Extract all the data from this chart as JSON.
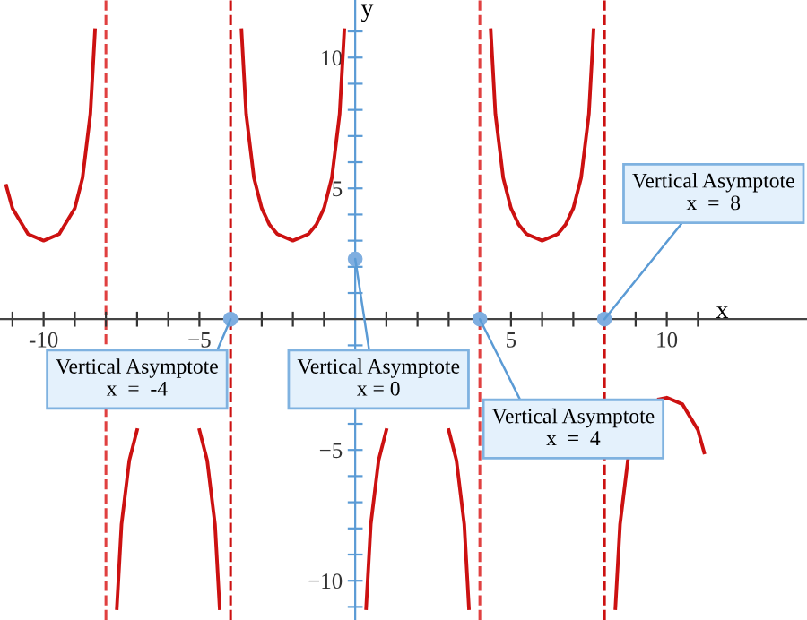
{
  "chart_data": {
    "type": "line",
    "xlabel": "x",
    "ylabel": "y",
    "xlim": [
      -11.4,
      14.5
    ],
    "ylim": [
      -11.5,
      12.2
    ],
    "xticks": [
      {
        "value": -11,
        "label": null
      },
      -10,
      {
        "value": -9,
        "label": null
      },
      {
        "value": -8,
        "label": null
      },
      {
        "value": -7,
        "label": null
      },
      {
        "value": -6,
        "label": null
      },
      {
        "value": -5,
        "label": "−5"
      },
      {
        "value": -4,
        "label": null
      },
      {
        "value": -3,
        "label": null
      },
      {
        "value": -2,
        "label": null
      },
      {
        "value": -1,
        "label": null
      },
      {
        "value": 1,
        "label": null
      },
      {
        "value": 2,
        "label": null
      },
      {
        "value": 3,
        "label": null
      },
      {
        "value": 4,
        "label": null
      },
      5,
      {
        "value": 6,
        "label": null
      },
      {
        "value": 7,
        "label": null
      },
      {
        "value": 8,
        "label": null
      },
      {
        "value": 9,
        "label": null
      },
      10,
      {
        "value": 11,
        "label": null
      }
    ],
    "yticks": [
      {
        "value": -11,
        "label": null
      },
      {
        "value": -10,
        "label": "−10"
      },
      {
        "value": -9,
        "label": null
      },
      {
        "value": -8,
        "label": null
      },
      {
        "value": -7,
        "label": null
      },
      {
        "value": -6,
        "label": null
      },
      {
        "value": -5,
        "label": "−5"
      },
      {
        "value": -4,
        "label": null
      },
      {
        "value": -3,
        "label": null
      },
      {
        "value": -2,
        "label": null
      },
      {
        "value": -1,
        "label": null
      },
      {
        "value": 1,
        "label": null
      },
      {
        "value": 2,
        "label": null
      },
      {
        "value": 3,
        "label": null
      },
      {
        "value": 4,
        "label": null
      },
      5,
      {
        "value": 6,
        "label": null
      },
      {
        "value": 7,
        "label": null
      },
      {
        "value": 8,
        "label": null
      },
      {
        "value": 9,
        "label": null
      },
      10,
      {
        "value": 11,
        "label": null
      }
    ],
    "grid": false,
    "marker": "none",
    "line_style": "solid",
    "series": [
      {
        "color": "#cc1111",
        "x": [
          -11.2,
          -11,
          -10.5,
          -10,
          -9.5,
          -9,
          -8.75,
          -8.5,
          -8.35,
          -8,
          -7.65,
          -7.5,
          -7.25,
          -7,
          -6,
          -5,
          -4.75,
          -4.5,
          -4.35,
          -4,
          -3.65,
          -3.5,
          -3.25,
          -3,
          -2.75,
          -2.5,
          -2,
          -1.5,
          -1.25,
          -1,
          -0.75,
          -0.5,
          -0.35,
          0,
          0.35,
          0.5,
          0.75,
          1,
          2,
          3,
          3.25,
          3.5,
          3.65,
          4,
          4.35,
          4.5,
          4.75,
          5,
          5.25,
          5.5,
          6,
          6.5,
          6.75,
          7,
          7.25,
          7.5,
          7.65,
          8,
          8.35,
          8.5,
          8.75,
          9.5,
          9.75,
          10,
          10.5,
          11,
          11.2
        ],
        "values": [
          5.1,
          4.24,
          3.25,
          3,
          3.25,
          4.24,
          5.4,
          7.84,
          11.05,
          null,
          -11.05,
          -7.84,
          -5.4,
          -4.24,
          null,
          -4.24,
          -5.4,
          -7.84,
          -11.05,
          null,
          11.05,
          7.84,
          5.4,
          4.24,
          3.61,
          3.25,
          3,
          3.25,
          3.61,
          4.24,
          5.4,
          7.84,
          11.05,
          null,
          -11.05,
          -7.84,
          -5.4,
          -4.24,
          null,
          -4.24,
          -5.4,
          -7.84,
          -11.05,
          null,
          11.05,
          7.84,
          5.4,
          4.24,
          3.61,
          3.25,
          3,
          3.25,
          3.61,
          4.24,
          5.4,
          7.84,
          11.05,
          null,
          -11.05,
          -7.84,
          -5.4,
          null,
          -3.06,
          -3,
          -3.25,
          -4.24,
          -5.1
        ]
      }
    ],
    "ref_lines": [
      {
        "axis": "x",
        "value": -8,
        "color": "#e04040",
        "line_style": "dashed"
      },
      {
        "axis": "x",
        "value": -4,
        "color": "#cc1111",
        "line_style": "dashed"
      },
      {
        "axis": "x",
        "value": 4,
        "color": "#e04040",
        "line_style": "dashed"
      },
      {
        "axis": "x",
        "value": 8,
        "color": "#cc1111",
        "line_style": "dashed"
      }
    ],
    "annotations": [
      {
        "text": "Vertical Asymptote\nx  =  -4",
        "x": -4,
        "y": 0
      },
      {
        "text": "Vertical Asymptote\nx = 0",
        "x": 0,
        "y": 2.3
      },
      {
        "text": "Vertical Asymptote\nx  =  4",
        "x": 4,
        "y": 0
      },
      {
        "text": "Vertical Asymptote\nx  =  8",
        "x": 8,
        "y": 0
      }
    ]
  }
}
